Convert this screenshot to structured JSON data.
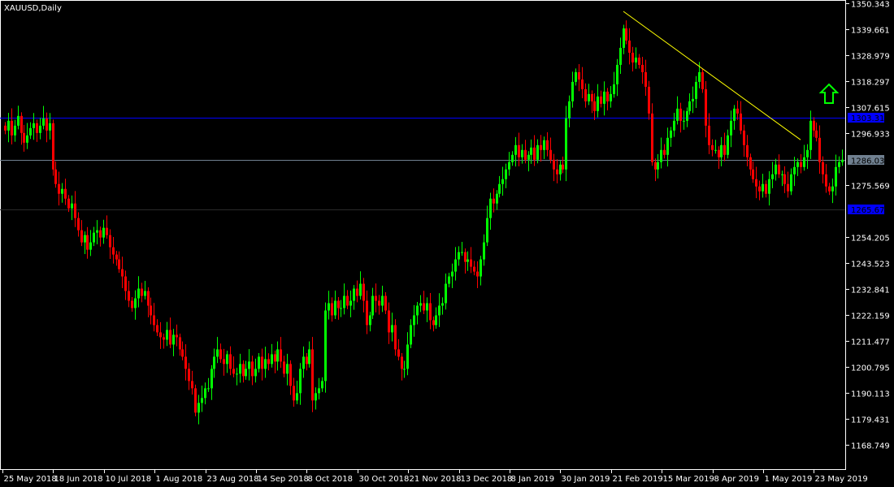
{
  "chart_data": {
    "type": "candlestick",
    "title": "XAUUSD,Daily",
    "colors": {
      "background": "#000000",
      "bull": "#00ff00",
      "bear": "#ff0000",
      "axis": "#ffffff",
      "hline": "#0000ff",
      "bid_line": "#708090",
      "trendline": "#ffff00",
      "arrow": "#00ff00"
    },
    "ylim": [
      1164,
      1352
    ],
    "y_ticks": [
      "1350.343",
      "1339.661",
      "1328.979",
      "1318.297",
      "1307.615",
      "1296.933",
      "1275.569",
      "1254.205",
      "1243.523",
      "1232.841",
      "1222.159",
      "1211.477",
      "1200.795",
      "1190.113",
      "1179.431",
      "1168.749"
    ],
    "x_ticks": [
      "25 May 2018",
      "18 Jun 2018",
      "10 Jul 2018",
      "1 Aug 2018",
      "23 Aug 2018",
      "14 Sep 2018",
      "8 Oct 2018",
      "30 Oct 2018",
      "21 Nov 2018",
      "13 Dec 2018",
      "8 Jan 2019",
      "30 Jan 2019",
      "21 Feb 2019",
      "15 Mar 2019",
      "8 Apr 2019",
      "1 May 2019",
      "23 May 2019"
    ],
    "horizontal_lines": [
      {
        "price": 1303.311,
        "label": "1303.311",
        "color": "#0000ff"
      },
      {
        "price": 1265.679,
        "label": "1265.679",
        "color": "#0000ff"
      }
    ],
    "bid": {
      "price": 1286.03,
      "label": "1286.030"
    },
    "trendline": {
      "start_price": 1347.0,
      "end_price": 1294.2
    },
    "signal_arrow": "up-arrow",
    "close": [
      1298,
      1302,
      1296,
      1300,
      1304,
      1297,
      1293,
      1296,
      1299,
      1301,
      1297,
      1300,
      1303,
      1298,
      1301,
      1282,
      1276,
      1272,
      1274,
      1270,
      1266,
      1268,
      1262,
      1257,
      1252,
      1255,
      1249,
      1252,
      1256,
      1257,
      1254,
      1258,
      1255,
      1250,
      1247,
      1245,
      1241,
      1238,
      1232,
      1228,
      1225,
      1229,
      1233,
      1230,
      1232,
      1226,
      1222,
      1218,
      1215,
      1213,
      1212,
      1216,
      1210,
      1214,
      1213,
      1208,
      1205,
      1200,
      1195,
      1192,
      1182,
      1186,
      1188,
      1192,
      1192,
      1200,
      1205,
      1208,
      1204,
      1202,
      1206,
      1200,
      1198,
      1198,
      1202,
      1197,
      1200,
      1203,
      1197,
      1200,
      1205,
      1200,
      1204,
      1202,
      1206,
      1203,
      1208,
      1203,
      1198,
      1202,
      1193,
      1187,
      1190,
      1200,
      1205,
      1202,
      1208,
      1187,
      1190,
      1192,
      1195,
      1224,
      1227,
      1222,
      1228,
      1225,
      1225,
      1230,
      1226,
      1228,
      1233,
      1230,
      1235,
      1228,
      1218,
      1222,
      1230,
      1228,
      1226,
      1230,
      1224,
      1215,
      1218,
      1208,
      1205,
      1200,
      1200,
      1210,
      1218,
      1222,
      1226,
      1227,
      1224,
      1227,
      1220,
      1218,
      1222,
      1226,
      1227,
      1235,
      1238,
      1240,
      1245,
      1248,
      1248,
      1244,
      1245,
      1242,
      1240,
      1238,
      1245,
      1252,
      1262,
      1270,
      1268,
      1272,
      1276,
      1278,
      1282,
      1285,
      1288,
      1292,
      1287,
      1290,
      1286,
      1288,
      1291,
      1286,
      1292,
      1290,
      1294,
      1290,
      1286,
      1282,
      1280,
      1284,
      1282,
      1303,
      1310,
      1318,
      1322,
      1319,
      1315,
      1310,
      1313,
      1310,
      1306,
      1312,
      1309,
      1314,
      1310,
      1313,
      1317,
      1325,
      1332,
      1340,
      1335,
      1330,
      1326,
      1328,
      1325,
      1322,
      1316,
      1305,
      1285,
      1282,
      1285,
      1290,
      1288,
      1295,
      1298,
      1302,
      1307,
      1302,
      1302,
      1306,
      1310,
      1311,
      1318,
      1322,
      1315,
      1300,
      1292,
      1290,
      1290,
      1287,
      1292,
      1288,
      1296,
      1302,
      1307,
      1305,
      1298,
      1292,
      1287,
      1282,
      1278,
      1275,
      1273,
      1276,
      1272,
      1278,
      1280,
      1284,
      1280,
      1280,
      1276,
      1273,
      1280,
      1283,
      1285,
      1283,
      1287,
      1290,
      1302,
      1298,
      1295,
      1285,
      1280,
      1275,
      1273,
      1275,
      1283,
      1285,
      1286
    ]
  }
}
